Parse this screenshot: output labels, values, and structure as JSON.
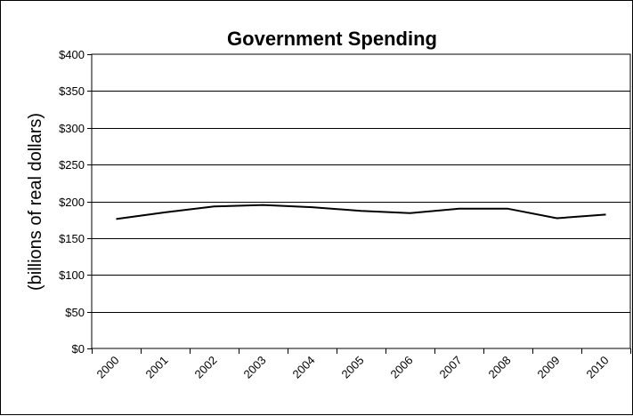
{
  "chart_data": {
    "type": "line",
    "title": "Government Spending",
    "xlabel": "",
    "ylabel": "(billions of real dollars)",
    "categories": [
      "2000",
      "2001",
      "2002",
      "2003",
      "2004",
      "2005",
      "2006",
      "2007",
      "2008",
      "2009",
      "2010"
    ],
    "series": [
      {
        "values": [
          176,
          185,
          193,
          195,
          192,
          187,
          184,
          190,
          190,
          177,
          182
        ]
      }
    ],
    "ylim": [
      0,
      400
    ],
    "yticks": [
      0,
      50,
      100,
      150,
      200,
      250,
      300,
      350,
      400
    ],
    "ytick_labels": [
      "$0",
      "$50",
      "$100",
      "$150",
      "$200",
      "$250",
      "$300",
      "$350",
      "$400"
    ],
    "grid": true,
    "legend": "none",
    "colors": {
      "line": "#000000",
      "grid": "#000000",
      "background": "#ffffff"
    }
  }
}
